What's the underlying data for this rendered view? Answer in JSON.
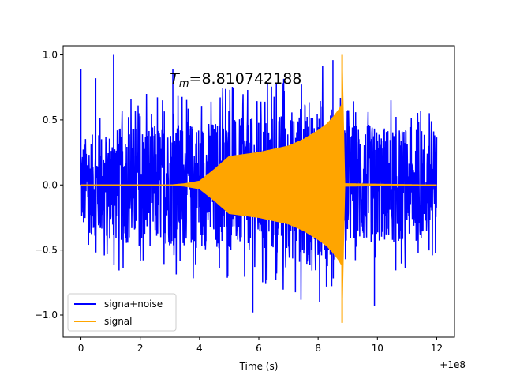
{
  "chart_data": {
    "type": "line",
    "title": "",
    "xlabel": "Time (s)",
    "ylabel": "",
    "x_offset_label": "+1e8",
    "xlim": [
      -0.6,
      12.6
    ],
    "ylim": [
      -1.17,
      1.07
    ],
    "xticks": [
      0,
      2,
      4,
      6,
      8,
      10,
      12
    ],
    "xtick_labels": [
      "0",
      "2",
      "4",
      "6",
      "8",
      "10",
      "12"
    ],
    "yticks": [
      -1.0,
      -0.5,
      0.0,
      0.5,
      1.0
    ],
    "ytick_labels": [
      "−1.0",
      "−0.5",
      "0.0",
      "0.5",
      "1.0"
    ],
    "grid": false,
    "legend_position": "lower left",
    "annotation": {
      "symbol": "T",
      "subscript": "m",
      "value_text": "=8.810742188",
      "x": 3.0,
      "y": 0.78
    },
    "series": [
      {
        "name": "signa+noise",
        "color": "#0000ff",
        "x_range": [
          0,
          12
        ],
        "noise_upper": [
          0.38,
          0.46,
          0.5,
          0.5,
          0.52,
          0.54,
          0.55,
          0.6,
          0.72,
          0.52,
          0.48,
          0.47,
          0.45
        ],
        "peaks": [
          [
            0.0,
            0.89
          ],
          [
            1.1,
            1.0
          ],
          [
            8.5,
            0.96
          ],
          [
            5.8,
            -0.98
          ],
          [
            9.9,
            -0.93
          ],
          [
            3.1,
            0.89
          ],
          [
            0.5,
            0.82
          ]
        ]
      },
      {
        "name": "signal",
        "color": "#ffa500",
        "x_range": [
          0,
          12
        ],
        "envelope_x": [
          0,
          3.0,
          3.5,
          4.0,
          4.5,
          5.0,
          6.0,
          7.0,
          7.5,
          8.0,
          8.3,
          8.5,
          8.7,
          8.8,
          8.81,
          8.9,
          12
        ],
        "envelope_y": [
          0,
          0.0,
          0.01,
          0.03,
          0.12,
          0.22,
          0.25,
          0.3,
          0.35,
          0.42,
          0.47,
          0.52,
          0.58,
          0.62,
          1.0,
          0.01,
          0.0
        ],
        "merger_time": 8.81,
        "merger_max": 1.0,
        "merger_min": -1.06
      }
    ]
  }
}
